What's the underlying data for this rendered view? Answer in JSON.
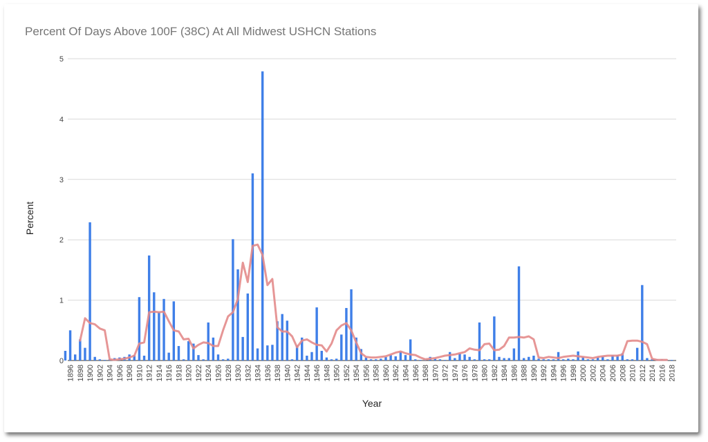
{
  "chart_data": {
    "type": "bar",
    "title": "Percent Of Days Above 100F (38C) At All Midwest USHCN Stations",
    "xlabel": "Year",
    "ylabel": "Percent",
    "ylim": [
      0,
      5
    ],
    "yticks": [
      "0",
      "1",
      "2",
      "3",
      "4",
      "5"
    ],
    "grid": "horizontal",
    "x_tick_labels": [
      "1896",
      "1898",
      "1900",
      "1902",
      "1904",
      "1906",
      "1908",
      "1910",
      "1912",
      "1914",
      "1916",
      "1918",
      "1920",
      "1922",
      "1924",
      "1926",
      "1928",
      "1930",
      "1932",
      "1934",
      "1936",
      "1938",
      "1940",
      "1942",
      "1944",
      "1946",
      "1948",
      "1950",
      "1952",
      "1954",
      "1956",
      "1958",
      "1960",
      "1962",
      "1964",
      "1966",
      "1968",
      "1970",
      "1972",
      "1974",
      "1976",
      "1978",
      "1980",
      "1982",
      "1984",
      "1986",
      "1988",
      "1990",
      "1992",
      "1994",
      "1996",
      "1998",
      "2000",
      "2002",
      "2004",
      "2006",
      "2008",
      "2010",
      "2012",
      "2014",
      "2016",
      "2018"
    ],
    "bar_color": "#3f7fe8",
    "trend_color": "#e38b8b",
    "series": [
      {
        "type": "bar",
        "x": [
          1895,
          1896,
          1897,
          1898,
          1899,
          1900,
          1901,
          1902,
          1903,
          1904,
          1905,
          1906,
          1907,
          1908,
          1909,
          1910,
          1911,
          1912,
          1913,
          1914,
          1915,
          1916,
          1917,
          1918,
          1919,
          1920,
          1921,
          1922,
          1923,
          1924,
          1925,
          1926,
          1927,
          1928,
          1929,
          1930,
          1931,
          1932,
          1933,
          1934,
          1935,
          1936,
          1937,
          1938,
          1939,
          1940,
          1941,
          1942,
          1943,
          1944,
          1945,
          1946,
          1947,
          1948,
          1949,
          1950,
          1951,
          1952,
          1953,
          1954,
          1955,
          1956,
          1957,
          1958,
          1959,
          1960,
          1961,
          1962,
          1963,
          1964,
          1965,
          1966,
          1967,
          1968,
          1969,
          1970,
          1971,
          1972,
          1973,
          1974,
          1975,
          1976,
          1977,
          1978,
          1979,
          1980,
          1981,
          1982,
          1983,
          1984,
          1985,
          1986,
          1987,
          1988,
          1989,
          1990,
          1991,
          1992,
          1993,
          1994,
          1995,
          1996,
          1997,
          1998,
          1999,
          2000,
          2001,
          2002,
          2003,
          2004,
          2005,
          2006,
          2007,
          2008,
          2009,
          2010,
          2011,
          2012,
          2013,
          2014,
          2015,
          2016,
          2017,
          2018
        ],
        "values": [
          0.16,
          0.5,
          0.1,
          0.35,
          0.21,
          2.29,
          0.06,
          0.02,
          0.01,
          0.02,
          0.04,
          0.05,
          0.06,
          0.1,
          0.09,
          1.05,
          0.08,
          1.74,
          1.13,
          0.8,
          1.02,
          0.13,
          0.98,
          0.24,
          0.02,
          0.32,
          0.28,
          0.09,
          0.02,
          0.63,
          0.38,
          0.1,
          0.02,
          0.03,
          2.01,
          1.51,
          0.39,
          1.11,
          3.1,
          0.2,
          4.79,
          0.25,
          0.26,
          0.65,
          0.77,
          0.66,
          0.02,
          0.25,
          0.38,
          0.08,
          0.14,
          0.88,
          0.16,
          0.05,
          0.02,
          0.03,
          0.43,
          0.87,
          1.18,
          0.38,
          0.19,
          0.05,
          0.02,
          0.02,
          0.03,
          0.06,
          0.09,
          0.07,
          0.15,
          0.09,
          0.35,
          0.02,
          0.01,
          0.01,
          0.06,
          0.03,
          0.02,
          0.01,
          0.14,
          0.04,
          0.12,
          0.1,
          0.06,
          0.02,
          0.63,
          0.02,
          0.02,
          0.73,
          0.06,
          0.04,
          0.04,
          0.2,
          1.56,
          0.04,
          0.06,
          0.08,
          0.03,
          0.02,
          0.02,
          0.02,
          0.14,
          0.02,
          0.03,
          0.02,
          0.15,
          0.06,
          0.02,
          0.02,
          0.05,
          0.07,
          0.02,
          0.09,
          0.09,
          0.12,
          0.02,
          0.02,
          0.21,
          1.25,
          0.04,
          0.02,
          0.02,
          0.02,
          0.01,
          0.01
        ]
      },
      {
        "type": "line",
        "x": [
          1898,
          1899,
          1900,
          1901,
          1902,
          1903,
          1904,
          1905,
          1906,
          1907,
          1908,
          1909,
          1910,
          1911,
          1912,
          1913,
          1914,
          1915,
          1916,
          1917,
          1918,
          1919,
          1920,
          1921,
          1922,
          1923,
          1924,
          1925,
          1926,
          1927,
          1928,
          1929,
          1930,
          1931,
          1932,
          1933,
          1934,
          1935,
          1936,
          1937,
          1938,
          1939,
          1940,
          1941,
          1942,
          1943,
          1944,
          1945,
          1946,
          1947,
          1948,
          1949,
          1950,
          1951,
          1952,
          1953,
          1954,
          1955,
          1956,
          1957,
          1958,
          1959,
          1960,
          1961,
          1962,
          1963,
          1964,
          1965,
          1966,
          1967,
          1968,
          1969,
          1970,
          1971,
          1972,
          1973,
          1974,
          1975,
          1976,
          1977,
          1978,
          1979,
          1980,
          1981,
          1982,
          1983,
          1984,
          1985,
          1986,
          1987,
          1988,
          1989,
          1990,
          1991,
          1992,
          1993,
          1994,
          1995,
          1996,
          1997,
          1998,
          1999,
          2000,
          2001,
          2002,
          2003,
          2004,
          2005,
          2006,
          2007,
          2008,
          2009,
          2010,
          2011,
          2012,
          2013,
          2014,
          2015,
          2016,
          2017
        ],
        "values": [
          0.33,
          0.7,
          0.62,
          0.6,
          0.53,
          0.5,
          0.02,
          0.01,
          0.02,
          0.03,
          0.05,
          0.08,
          0.28,
          0.3,
          0.8,
          0.81,
          0.8,
          0.81,
          0.65,
          0.5,
          0.48,
          0.35,
          0.36,
          0.2,
          0.26,
          0.3,
          0.29,
          0.24,
          0.24,
          0.5,
          0.73,
          0.8,
          1.02,
          1.62,
          1.3,
          1.9,
          1.92,
          1.75,
          1.25,
          1.35,
          0.55,
          0.48,
          0.48,
          0.4,
          0.22,
          0.33,
          0.35,
          0.3,
          0.26,
          0.25,
          0.15,
          0.28,
          0.5,
          0.58,
          0.62,
          0.5,
          0.3,
          0.12,
          0.06,
          0.05,
          0.05,
          0.06,
          0.07,
          0.1,
          0.13,
          0.15,
          0.12,
          0.1,
          0.09,
          0.05,
          0.02,
          0.03,
          0.04,
          0.06,
          0.08,
          0.09,
          0.1,
          0.12,
          0.14,
          0.2,
          0.18,
          0.17,
          0.27,
          0.28,
          0.17,
          0.18,
          0.24,
          0.38,
          0.38,
          0.39,
          0.38,
          0.4,
          0.35,
          0.05,
          0.04,
          0.06,
          0.05,
          0.04,
          0.06,
          0.07,
          0.08,
          0.07,
          0.06,
          0.05,
          0.04,
          0.06,
          0.07,
          0.08,
          0.08,
          0.08,
          0.1,
          0.32,
          0.33,
          0.33,
          0.31,
          0.27,
          0.03,
          0.01,
          0.01,
          0.01
        ]
      }
    ]
  }
}
